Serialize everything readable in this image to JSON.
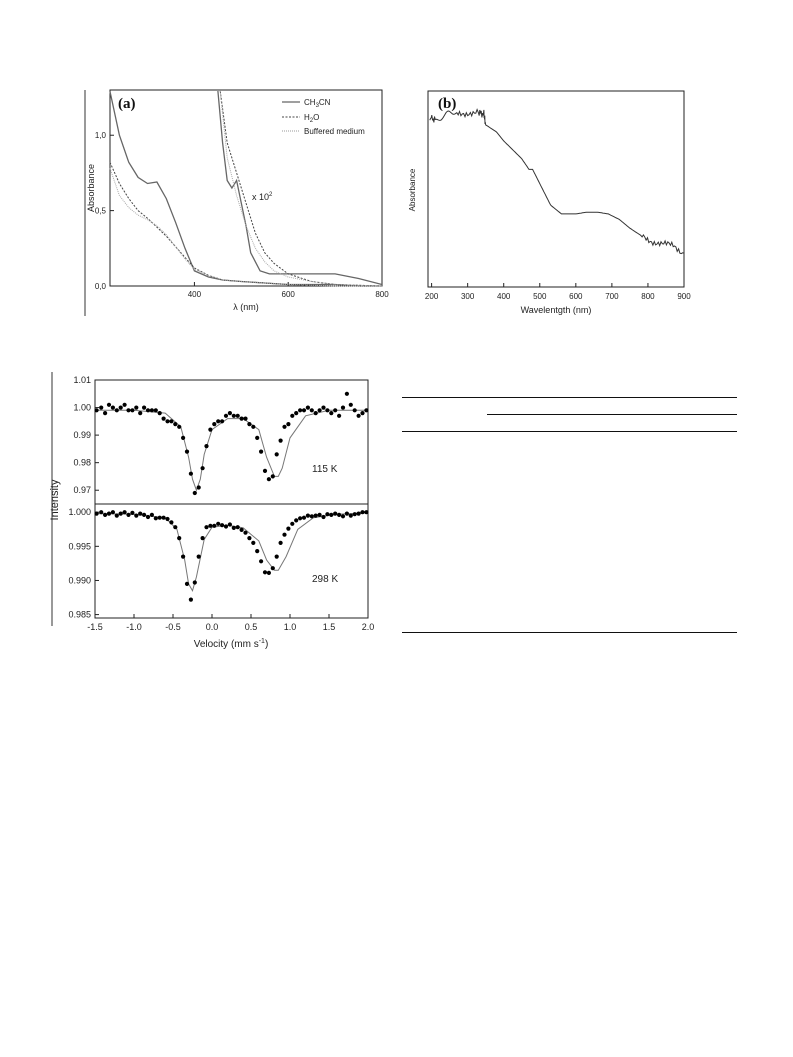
{
  "figure_a": {
    "panel_label": "(a)",
    "y_label": "Absorbance",
    "x_label": "λ (nm)",
    "annotation_scale": "x 10",
    "annotation_exp": "2",
    "y_ticks": [
      "0,0",
      "0,5",
      "1,0"
    ],
    "x_ticks": [
      "400",
      "600",
      "800"
    ],
    "legend": [
      {
        "name": "CH",
        "sub": "3",
        "rest": "CN",
        "style": "solid"
      },
      {
        "name": "H",
        "sub": "2",
        "rest": "O",
        "style": "dashed"
      },
      {
        "name": "Buffered medium",
        "sub": "",
        "rest": "",
        "style": "dotted"
      }
    ]
  },
  "figure_b": {
    "panel_label": "(b)",
    "y_label": "Absorbance",
    "x_label": "Wavelentgth (nm)",
    "x_ticks": [
      "200",
      "300",
      "400",
      "500",
      "600",
      "700",
      "800",
      "900"
    ]
  },
  "figure_c": {
    "y_label": "Intensity",
    "x_label": "Velocity (mm s",
    "x_label_exp": "-1",
    "x_label_end": ")",
    "x_ticks": [
      "-1.5",
      "-1.0",
      "-0.5",
      "0.0",
      "0.5",
      "1.0",
      "1.5",
      "2.0"
    ],
    "top": {
      "temperature": "115 K",
      "y_ticks": [
        "0.97",
        "0.98",
        "0.99",
        "1.00",
        "1.01"
      ]
    },
    "bottom": {
      "temperature": "298 K",
      "y_ticks": [
        "0.985",
        "0.990",
        "0.995",
        "1.000"
      ]
    }
  },
  "chart_data": [
    {
      "type": "line",
      "title": "(a)",
      "xlabel": "λ (nm)",
      "ylabel": "Absorbance",
      "xlim": [
        220,
        800
      ],
      "ylim": [
        0,
        1.3
      ],
      "legend_position": "top-right",
      "series": [
        {
          "name": "CH3CN",
          "x": [
            220,
            240,
            260,
            280,
            300,
            320,
            340,
            360,
            380,
            400,
            430,
            460,
            500,
            550,
            600,
            650,
            700,
            750,
            800
          ],
          "values": [
            1.29,
            1.0,
            0.82,
            0.72,
            0.68,
            0.69,
            0.58,
            0.42,
            0.25,
            0.1,
            0.06,
            0.04,
            0.03,
            0.02,
            0.01,
            0.01,
            0.01,
            0.0,
            0.0
          ]
        },
        {
          "name": "H2O",
          "x": [
            220,
            240,
            260,
            280,
            300,
            320,
            340,
            360,
            380,
            400,
            430,
            460,
            500,
            550,
            600,
            700,
            800
          ],
          "values": [
            0.82,
            0.68,
            0.58,
            0.5,
            0.45,
            0.39,
            0.33,
            0.26,
            0.19,
            0.12,
            0.07,
            0.04,
            0.03,
            0.02,
            0.01,
            0.0,
            0.0
          ]
        },
        {
          "name": "Buffered medium",
          "x": [
            220,
            240,
            260,
            280,
            300,
            320,
            340,
            360,
            380,
            400,
            430,
            460,
            500,
            550,
            600,
            700,
            800
          ],
          "values": [
            0.78,
            0.6,
            0.52,
            0.47,
            0.44,
            0.4,
            0.34,
            0.26,
            0.18,
            0.11,
            0.07,
            0.04,
            0.03,
            0.02,
            0.01,
            0.0,
            0.0
          ]
        },
        {
          "name": "CH3CN x 10^2",
          "x": [
            450,
            460,
            470,
            480,
            490,
            500,
            510,
            520,
            540,
            560,
            580,
            600,
            650,
            700,
            750,
            800
          ],
          "values": [
            1.3,
            0.95,
            0.7,
            0.65,
            0.7,
            0.55,
            0.4,
            0.22,
            0.1,
            0.08,
            0.08,
            0.08,
            0.08,
            0.08,
            0.05,
            0.01
          ]
        },
        {
          "name": "H2O x 10^2",
          "x": [
            455,
            470,
            490,
            510,
            530,
            550,
            570,
            600,
            650,
            700,
            800
          ],
          "values": [
            1.3,
            0.95,
            0.75,
            0.55,
            0.35,
            0.22,
            0.15,
            0.08,
            0.03,
            0.01,
            0.0
          ]
        },
        {
          "name": "Buffered medium x 10^2",
          "x": [
            455,
            470,
            490,
            510,
            530,
            550,
            570,
            600,
            650,
            700,
            800
          ],
          "values": [
            1.3,
            0.85,
            0.6,
            0.4,
            0.25,
            0.16,
            0.1,
            0.06,
            0.03,
            0.01,
            0.0
          ]
        }
      ]
    },
    {
      "type": "line",
      "title": "(b)",
      "xlabel": "Wavelentgth (nm)",
      "ylabel": "Absorbance",
      "xlim": [
        190,
        900
      ],
      "series": [
        {
          "name": "",
          "x": [
            195,
            210,
            230,
            250,
            270,
            300,
            330,
            345,
            350,
            380,
            400,
            420,
            450,
            470,
            480,
            500,
            530,
            560,
            600,
            630,
            660,
            690,
            720,
            750,
            780,
            810,
            840,
            870,
            900
          ],
          "values": [
            0.95,
            0.94,
            0.96,
            0.97,
            0.97,
            0.98,
            0.98,
            0.97,
            0.91,
            0.87,
            0.82,
            0.78,
            0.72,
            0.66,
            0.66,
            0.58,
            0.46,
            0.41,
            0.41,
            0.42,
            0.42,
            0.41,
            0.38,
            0.33,
            0.29,
            0.26,
            0.24,
            0.23,
            0.19
          ]
        }
      ]
    },
    {
      "type": "scatter",
      "title": "115 K",
      "xlabel": "Velocity (mm s-1)",
      "ylabel": "Intensity",
      "xlim": [
        -1.5,
        2.0
      ],
      "ylim": [
        0.965,
        1.01
      ],
      "series": [
        {
          "name": "",
          "x": [
            -1.48,
            -1.42,
            -1.37,
            -1.32,
            -1.27,
            -1.22,
            -1.17,
            -1.12,
            -1.07,
            -1.02,
            -0.97,
            -0.92,
            -0.87,
            -0.82,
            -0.77,
            -0.72,
            -0.67,
            -0.62,
            -0.57,
            -0.52,
            -0.47,
            -0.42,
            -0.37,
            -0.32,
            -0.27,
            -0.22,
            -0.17,
            -0.12,
            -0.07,
            -0.02,
            0.03,
            0.08,
            0.13,
            0.18,
            0.23,
            0.28,
            0.33,
            0.38,
            0.43,
            0.48,
            0.53,
            0.58,
            0.63,
            0.68,
            0.73,
            0.78,
            0.83,
            0.88,
            0.93,
            0.98,
            1.03,
            1.08,
            1.13,
            1.18,
            1.23,
            1.28,
            1.33,
            1.38,
            1.43,
            1.48,
            1.53,
            1.58,
            1.63,
            1.68,
            1.73,
            1.78,
            1.83,
            1.88,
            1.93,
            1.98
          ],
          "values": [
            0.999,
            1.0,
            0.998,
            1.001,
            1.0,
            0.999,
            1.0,
            1.001,
            0.999,
            0.999,
            1.0,
            0.998,
            1.0,
            0.999,
            0.999,
            0.999,
            0.998,
            0.996,
            0.995,
            0.995,
            0.994,
            0.993,
            0.989,
            0.984,
            0.976,
            0.969,
            0.971,
            0.978,
            0.986,
            0.992,
            0.994,
            0.995,
            0.995,
            0.997,
            0.998,
            0.997,
            0.997,
            0.996,
            0.996,
            0.994,
            0.993,
            0.989,
            0.984,
            0.977,
            0.974,
            0.975,
            0.983,
            0.988,
            0.993,
            0.994,
            0.997,
            0.998,
            0.999,
            0.999,
            1.0,
            0.999,
            0.998,
            0.999,
            1.0,
            0.999,
            0.998,
            0.999,
            0.997,
            1.0,
            1.005,
            1.001,
            0.999,
            0.997,
            0.998,
            0.999
          ]
        },
        {
          "name": "",
          "x": [
            -1.5,
            -1.0,
            -0.6,
            -0.4,
            -0.3,
            -0.25,
            -0.2,
            -0.15,
            -0.1,
            0.0,
            0.2,
            0.4,
            0.6,
            0.7,
            0.8,
            0.85,
            0.9,
            1.0,
            1.2,
            1.5,
            2.0
          ],
          "values": [
            0.999,
            0.999,
            0.998,
            0.993,
            0.982,
            0.974,
            0.97,
            0.974,
            0.983,
            0.992,
            0.996,
            0.996,
            0.992,
            0.982,
            0.975,
            0.975,
            0.978,
            0.989,
            0.997,
            0.999,
            0.999
          ]
        }
      ]
    },
    {
      "type": "scatter",
      "title": "298 K",
      "xlabel": "Velocity (mm s-1)",
      "ylabel": "Intensity",
      "xlim": [
        -1.5,
        2.0
      ],
      "ylim": [
        0.985,
        1.001
      ],
      "series": [
        {
          "name": "",
          "x": [
            -1.48,
            -1.42,
            -1.37,
            -1.32,
            -1.27,
            -1.22,
            -1.17,
            -1.12,
            -1.07,
            -1.02,
            -0.97,
            -0.92,
            -0.87,
            -0.82,
            -0.77,
            -0.72,
            -0.67,
            -0.62,
            -0.57,
            -0.52,
            -0.47,
            -0.42,
            -0.37,
            -0.32,
            -0.27,
            -0.22,
            -0.17,
            -0.12,
            -0.07,
            -0.02,
            0.03,
            0.08,
            0.13,
            0.18,
            0.23,
            0.28,
            0.33,
            0.38,
            0.43,
            0.48,
            0.53,
            0.58,
            0.63,
            0.68,
            0.73,
            0.78,
            0.83,
            0.88,
            0.93,
            0.98,
            1.03,
            1.08,
            1.13,
            1.18,
            1.23,
            1.28,
            1.33,
            1.38,
            1.43,
            1.48,
            1.53,
            1.58,
            1.63,
            1.68,
            1.73,
            1.78,
            1.83,
            1.88,
            1.93,
            1.98
          ],
          "values": [
            0.9998,
            1.0,
            0.9996,
            0.9998,
            1.0,
            0.9995,
            0.9998,
            1.0,
            0.9996,
            0.9999,
            0.9995,
            0.9998,
            0.9996,
            0.9993,
            0.9996,
            0.9991,
            0.9992,
            0.9992,
            0.999,
            0.9985,
            0.9978,
            0.9962,
            0.9935,
            0.9895,
            0.9872,
            0.9897,
            0.9935,
            0.9962,
            0.9978,
            0.998,
            0.998,
            0.9983,
            0.9981,
            0.9979,
            0.9982,
            0.9977,
            0.9978,
            0.9974,
            0.997,
            0.9962,
            0.9955,
            0.9943,
            0.9928,
            0.9912,
            0.9911,
            0.9918,
            0.9935,
            0.9955,
            0.9967,
            0.9976,
            0.9983,
            0.9988,
            0.9991,
            0.9992,
            0.9995,
            0.9994,
            0.9995,
            0.9996,
            0.9993,
            0.9997,
            0.9996,
            0.9998,
            0.9996,
            0.9994,
            0.9998,
            0.9995,
            0.9997,
            0.9998,
            1.0,
            1.0
          ]
        },
        {
          "name": "",
          "x": [
            -1.5,
            -1.0,
            -0.6,
            -0.45,
            -0.35,
            -0.3,
            -0.25,
            -0.2,
            -0.1,
            0.0,
            0.2,
            0.4,
            0.6,
            0.7,
            0.8,
            0.85,
            0.95,
            1.1,
            1.3,
            1.6,
            2.0
          ],
          "values": [
            0.9998,
            0.9997,
            0.9992,
            0.9975,
            0.993,
            0.9895,
            0.9885,
            0.9905,
            0.996,
            0.9978,
            0.9981,
            0.9977,
            0.9958,
            0.993,
            0.9915,
            0.9915,
            0.9935,
            0.9975,
            0.9992,
            0.9997,
            0.9999
          ]
        }
      ]
    }
  ]
}
